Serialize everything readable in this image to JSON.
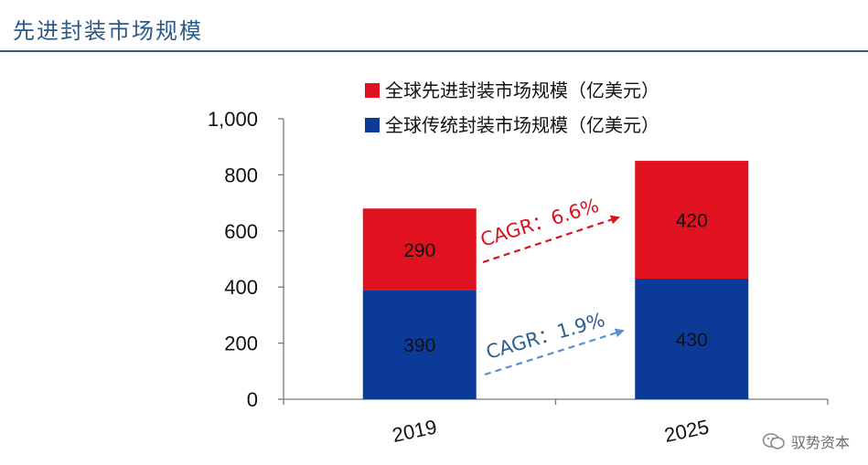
{
  "page": {
    "title": "先进封装市场规模",
    "watermark": "驭势资本"
  },
  "chart_data": {
    "type": "bar",
    "stacked": true,
    "categories": [
      "2019",
      "2025"
    ],
    "series": [
      {
        "name": "全球传统封装市场规模（亿美元）",
        "values": [
          390,
          430
        ],
        "color": "#c00d1e"
      },
      {
        "name": "全球先进封装市场规模（亿美元）",
        "values": [
          290,
          420
        ],
        "color": "#e1121f"
      }
    ],
    "ylim": [
      0,
      1000
    ],
    "yticks": [
      "0",
      "200",
      "400",
      "600",
      "800",
      "1,000"
    ],
    "legend_position": "top",
    "annotations": [
      {
        "text": "CAGR：6.6%",
        "color": "#d9141e"
      },
      {
        "text": "CAGR：1.9%",
        "color": "#2f5f8a"
      }
    ]
  }
}
